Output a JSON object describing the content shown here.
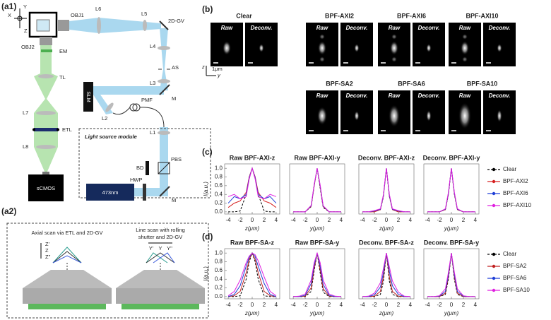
{
  "a1": {
    "label": "(a1)",
    "axes": {
      "x": "X",
      "y": "Y",
      "z": "Z"
    },
    "components": {
      "obj1": "OBJ1",
      "l6": "L6",
      "l5": "L5",
      "gv": "2D-GV",
      "obj2": "OBJ2",
      "em": "EM",
      "l4": "L4",
      "as": "AS",
      "tl": "TL",
      "l3": "L3",
      "m1": "M",
      "slm": "SLM",
      "l2": "L2",
      "pmf": "PMF",
      "l7": "L7",
      "etl": "ETL",
      "l1": "L1",
      "l8": "L8",
      "bd": "BD",
      "pbs": "PBS",
      "hwp": "HWP",
      "laser": "473nm",
      "m2": "M",
      "camera": "sCMOS"
    },
    "module": "Light source module"
  },
  "a2": {
    "label": "(a2)",
    "axial": {
      "title": "Axial scan via ETL and 2D-GV",
      "marks": [
        "Z'",
        "Z",
        "Z''"
      ]
    },
    "line": {
      "title": [
        "Line scan with rolling",
        "shutter and 2D-GV"
      ],
      "marks": [
        "Y'",
        "Y",
        "Y''"
      ]
    }
  },
  "b": {
    "label": "(b)",
    "groups": [
      {
        "title": "Clear",
        "raw": "Raw",
        "deconv": "Deconv."
      },
      {
        "title": "BPF-AXI2",
        "raw": "Raw",
        "deconv": "Deconv."
      },
      {
        "title": "BPF-AXI6",
        "raw": "Raw",
        "deconv": "Deconv."
      },
      {
        "title": "BPF-AXI10",
        "raw": "Raw",
        "deconv": "Deconv."
      },
      {
        "title": "BPF-SA2",
        "raw": "Raw",
        "deconv": "Deconv."
      },
      {
        "title": "BPF-SA6",
        "raw": "Raw",
        "deconv": "Deconv."
      },
      {
        "title": "BPF-SA10",
        "raw": "Raw",
        "deconv": "Deconv."
      }
    ],
    "axes": {
      "z": "z",
      "y": "y"
    },
    "scale": "1μm"
  },
  "chart_data": [
    {
      "type": "line",
      "label": "(c)",
      "ylabel": "I(a.u.)",
      "x": [
        -4,
        -3,
        -2,
        -1,
        -0.5,
        0,
        0.5,
        1,
        2,
        3,
        4
      ],
      "xlim": [
        -4.6,
        4.6
      ],
      "xticks": [
        -4,
        -2,
        0,
        2,
        4
      ],
      "ylim": [
        -0.05,
        1.1
      ],
      "yticks": [
        {
          "value": 0,
          "label": "0.0"
        },
        {
          "value": 0.2,
          "label": "0.2"
        },
        {
          "value": 0.4,
          "label": "0.4"
        },
        {
          "value": 0.6,
          "label": "0.6"
        },
        {
          "value": 0.8,
          "label": "0.8"
        },
        {
          "value": 1,
          "label": "1.0"
        }
      ],
      "plots": [
        {
          "title": "Raw BPF-AXI-z",
          "xlabel": "z(μm)"
        },
        {
          "title": "Raw BPF-AXI-y",
          "xlabel": "y(μm)"
        },
        {
          "title": "Deconv. BPF-AXI-z",
          "xlabel": "z(μm)"
        },
        {
          "title": "Deconv. BPF-AXI-y",
          "xlabel": "y(μm)"
        }
      ],
      "series": [
        {
          "name": "Clear",
          "color": "#000000",
          "line_style": "dashed",
          "values": [
            [
              0,
              0,
              0.02,
              0.4,
              0.8,
              1.0,
              0.8,
              0.4,
              0.02,
              0,
              0
            ],
            [
              0,
              0,
              0,
              0.12,
              0.6,
              1.0,
              0.55,
              0.1,
              0,
              0,
              0
            ],
            [
              0,
              0,
              0,
              0.05,
              0.35,
              1.0,
              0.35,
              0.05,
              0,
              0,
              0
            ],
            [
              0,
              0,
              0,
              0.05,
              0.4,
              1.0,
              0.4,
              0.05,
              0,
              0,
              0
            ]
          ]
        },
        {
          "name": "BPF-AXI2",
          "color": "#d62020",
          "line_style": "solid",
          "values": [
            [
              0.1,
              0.2,
              0.25,
              0.45,
              0.8,
              1.0,
              0.8,
              0.45,
              0.25,
              0.2,
              0.1
            ],
            [
              0,
              0,
              0,
              0.13,
              0.6,
              1.0,
              0.58,
              0.12,
              0,
              0,
              0
            ],
            [
              0,
              0,
              0,
              0.05,
              0.37,
              1.0,
              0.37,
              0.05,
              0,
              0,
              0
            ],
            [
              0,
              0,
              0,
              0.05,
              0.42,
              1.0,
              0.42,
              0.05,
              0,
              0,
              0
            ]
          ]
        },
        {
          "name": "BPF-AXI6",
          "color": "#1f3fd6",
          "line_style": "solid",
          "values": [
            [
              0.2,
              0.35,
              0.3,
              0.4,
              0.78,
              1.0,
              0.78,
              0.4,
              0.3,
              0.35,
              0.2
            ],
            [
              0,
              0,
              0,
              0.14,
              0.62,
              1.0,
              0.6,
              0.13,
              0,
              0,
              0
            ],
            [
              0,
              0,
              0.02,
              0.06,
              0.38,
              1.0,
              0.38,
              0.06,
              0.02,
              0,
              0
            ],
            [
              0,
              0,
              0,
              0.06,
              0.43,
              1.0,
              0.43,
              0.06,
              0,
              0,
              0
            ]
          ]
        },
        {
          "name": "BPF-AXI10",
          "color": "#e020e0",
          "line_style": "solid",
          "values": [
            [
              0.35,
              0.4,
              0.3,
              0.35,
              0.75,
              1.0,
              0.75,
              0.35,
              0.3,
              0.4,
              0.35
            ],
            [
              0,
              0,
              0,
              0.15,
              0.63,
              1.0,
              0.62,
              0.14,
              0,
              0,
              0
            ],
            [
              0,
              0,
              0.03,
              0.07,
              0.4,
              1.0,
              0.4,
              0.07,
              0.03,
              0,
              0
            ],
            [
              0,
              0,
              0,
              0.07,
              0.45,
              1.0,
              0.45,
              0.07,
              0,
              0,
              0
            ]
          ]
        }
      ]
    },
    {
      "type": "line",
      "label": "(d)",
      "ylabel": "I(a.u.)",
      "x": [
        -4,
        -3,
        -2,
        -1,
        -0.5,
        0,
        0.5,
        1,
        2,
        3,
        4
      ],
      "xlim": [
        -4.6,
        4.6
      ],
      "xticks": [
        -4,
        -2,
        0,
        2,
        4
      ],
      "ylim": [
        -0.05,
        1.1
      ],
      "yticks": [
        {
          "value": 0,
          "label": "0.0"
        },
        {
          "value": 0.2,
          "label": "0.2"
        },
        {
          "value": 0.4,
          "label": "0.4"
        },
        {
          "value": 0.6,
          "label": "0.6"
        },
        {
          "value": 0.8,
          "label": "0.8"
        },
        {
          "value": 1,
          "label": "1.0"
        }
      ],
      "plots": [
        {
          "title": "Raw BPF-SA-z",
          "xlabel": "z(μm)"
        },
        {
          "title": "Raw BPF-SA-y",
          "xlabel": "y(μm)"
        },
        {
          "title": "Deconv. BPF-SA-z",
          "xlabel": "z(μm)"
        },
        {
          "title": "Deconv. BPF-SA-y",
          "xlabel": "y(μm)"
        }
      ],
      "series": [
        {
          "name": "Clear",
          "color": "#000000",
          "line_style": "dashed",
          "values": [
            [
              0,
              0,
              0.02,
              0.4,
              0.8,
              1.0,
              0.8,
              0.4,
              0.02,
              0,
              0
            ],
            [
              0,
              0,
              0,
              0.12,
              0.6,
              1.0,
              0.55,
              0.1,
              0,
              0,
              0
            ],
            [
              0,
              0,
              0,
              0.05,
              0.35,
              1.0,
              0.35,
              0.05,
              0,
              0,
              0
            ],
            [
              0,
              0,
              0,
              0.05,
              0.4,
              1.0,
              0.4,
              0.05,
              0,
              0,
              0
            ]
          ]
        },
        {
          "name": "BPF-SA2",
          "color": "#c02020",
          "line_style": "solid",
          "values": [
            [
              0,
              0.02,
              0.12,
              0.55,
              0.85,
              1.0,
              0.85,
              0.55,
              0.12,
              0.02,
              0
            ],
            [
              0,
              0,
              0.01,
              0.2,
              0.65,
              1.0,
              0.62,
              0.18,
              0.01,
              0,
              0
            ],
            [
              0,
              0,
              0.01,
              0.12,
              0.45,
              1.0,
              0.45,
              0.12,
              0.01,
              0,
              0
            ],
            [
              0,
              0,
              0,
              0.08,
              0.45,
              1.0,
              0.45,
              0.08,
              0,
              0,
              0
            ]
          ]
        },
        {
          "name": "BPF-SA6",
          "color": "#1f3fd6",
          "line_style": "solid",
          "values": [
            [
              0,
              0.05,
              0.25,
              0.7,
              0.9,
              1.0,
              0.92,
              0.7,
              0.3,
              0.05,
              0
            ],
            [
              0,
              0,
              0.03,
              0.3,
              0.72,
              1.0,
              0.7,
              0.28,
              0.03,
              0,
              0
            ],
            [
              0,
              0,
              0.04,
              0.22,
              0.55,
              1.0,
              0.58,
              0.25,
              0.05,
              0,
              0
            ],
            [
              0,
              0,
              0.01,
              0.12,
              0.5,
              1.0,
              0.5,
              0.12,
              0.01,
              0,
              0
            ]
          ]
        },
        {
          "name": "BPF-SA10",
          "color": "#e020e0",
          "line_style": "solid",
          "values": [
            [
              0.02,
              0.12,
              0.38,
              0.78,
              0.93,
              1.0,
              0.96,
              0.82,
              0.45,
              0.12,
              0.02
            ],
            [
              0,
              0.01,
              0.06,
              0.38,
              0.78,
              1.0,
              0.78,
              0.38,
              0.06,
              0.01,
              0
            ],
            [
              0,
              0.01,
              0.08,
              0.32,
              0.65,
              1.0,
              0.68,
              0.36,
              0.1,
              0.01,
              0
            ],
            [
              0,
              0,
              0.02,
              0.18,
              0.56,
              1.0,
              0.56,
              0.18,
              0.02,
              0,
              0
            ]
          ]
        }
      ]
    }
  ]
}
